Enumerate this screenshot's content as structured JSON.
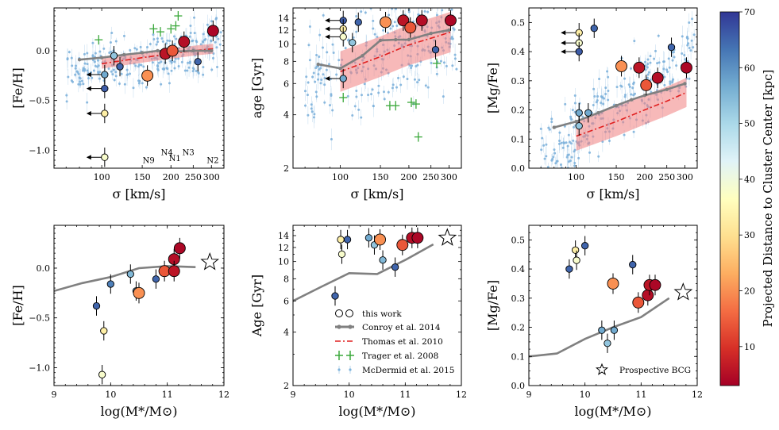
{
  "colors": {
    "conroy": "#808080",
    "thomas": "#e02020",
    "thomas_band": "#f08080",
    "trager": "#3aa83a",
    "mcdermid": "#7fb3dc",
    "errorbar": "#000000"
  },
  "colorbar": {
    "label": "Projected Distance to Cluster Center [kpc]",
    "range": [
      3,
      70
    ],
    "ticks": [
      10,
      20,
      30,
      40,
      50,
      60,
      70
    ],
    "colormap": [
      "#a50026",
      "#d73027",
      "#f46d43",
      "#fdae61",
      "#fee090",
      "#ffffbf",
      "#e0f3f8",
      "#abd9e9",
      "#74add1",
      "#4575b4",
      "#313695"
    ]
  },
  "legend": {
    "entries": [
      "this work",
      "Conroy et al. 2014",
      "Thomas et al. 2010",
      "Trager et al. 2008",
      "McDermid et al. 2015"
    ]
  },
  "bcg_legend": "Prospective BCG",
  "chart_data": [
    {
      "id": "feh_sigma",
      "type": "scatter",
      "xscale": "log",
      "yscale": "linear",
      "xlabel": "σ [km/s]",
      "ylabel": "[Fe/H]",
      "xlim": [
        62,
        340
      ],
      "ylim": [
        -1.18,
        0.43
      ],
      "xticks": [
        100,
        150,
        200,
        250,
        300
      ],
      "yticks": [
        -1.0,
        -0.5,
        0.0
      ],
      "ytick_labels": [
        "−1.0",
        "−0.5",
        "0.0"
      ],
      "points": [
        {
          "x": 103,
          "y": -0.24,
          "c": 57,
          "up": true
        },
        {
          "x": 103,
          "y": -0.38,
          "c": 66,
          "up": true
        },
        {
          "x": 103,
          "y": -0.63,
          "c": 33,
          "up": true
        },
        {
          "x": 103,
          "y": -1.07,
          "c": 38,
          "up": true
        },
        {
          "x": 113,
          "y": -0.05,
          "c": 53,
          "up": false
        },
        {
          "x": 120,
          "y": -0.16,
          "c": 65,
          "up": false
        },
        {
          "x": 158,
          "y": -0.25,
          "c": 20,
          "up": false
        },
        {
          "x": 189,
          "y": -0.03,
          "c": 6,
          "up": false
        },
        {
          "x": 203,
          "y": 0.0,
          "c": 14,
          "up": false
        },
        {
          "x": 228,
          "y": 0.09,
          "c": 5,
          "up": false
        },
        {
          "x": 262,
          "y": -0.11,
          "c": 65,
          "up": false
        },
        {
          "x": 305,
          "y": 0.2,
          "c": 4,
          "up": false
        }
      ],
      "conroy": {
        "x": [
          80,
          100,
          125,
          150,
          175,
          200,
          250,
          300
        ],
        "y": [
          -0.09,
          -0.07,
          -0.04,
          -0.02,
          0.0,
          -0.01,
          0.0,
          0.0
        ]
      },
      "thomas": {
        "x": [
          100,
          150,
          200,
          250,
          305
        ],
        "y": [
          -0.13,
          -0.07,
          -0.03,
          0.0,
          0.02
        ],
        "err": 0.05
      },
      "trager": [
        {
          "x": 97,
          "y": 0.11
        },
        {
          "x": 168,
          "y": 0.22
        },
        {
          "x": 180,
          "y": 0.19
        },
        {
          "x": 200,
          "y": 0.22
        },
        {
          "x": 210,
          "y": 0.25
        },
        {
          "x": 215,
          "y": 0.35
        }
      ],
      "annotations": [
        {
          "label": "N9",
          "x": 160,
          "y": -1.13
        },
        {
          "label": "N4",
          "x": 192,
          "y": -1.05
        },
        {
          "label": "N1",
          "x": 208,
          "y": -1.11
        },
        {
          "label": "N3",
          "x": 238,
          "y": -1.05
        },
        {
          "label": "N2",
          "x": 304,
          "y": -1.13
        }
      ]
    },
    {
      "id": "age_sigma",
      "type": "scatter",
      "xscale": "log",
      "yscale": "log",
      "xlabel": "σ [km/s]",
      "ylabel": "age [Gyr]",
      "xlim": [
        62,
        340
      ],
      "ylim": [
        2,
        16
      ],
      "xticks": [
        100,
        150,
        200,
        250,
        300
      ],
      "yticks": [
        2,
        4,
        6,
        8,
        10,
        12,
        14
      ],
      "points": [
        {
          "x": 103,
          "y": 13.6,
          "c": 66,
          "up": true
        },
        {
          "x": 103,
          "y": 12.2,
          "c": 33,
          "up": true
        },
        {
          "x": 103,
          "y": 11.0,
          "c": 38,
          "up": true
        },
        {
          "x": 103,
          "y": 6.4,
          "c": 57,
          "up": true
        },
        {
          "x": 113,
          "y": 10.2,
          "c": 53,
          "up": false
        },
        {
          "x": 120,
          "y": 13.3,
          "c": 65,
          "up": false
        },
        {
          "x": 158,
          "y": 13.3,
          "c": 20,
          "up": false
        },
        {
          "x": 189,
          "y": 13.6,
          "c": 6,
          "up": false
        },
        {
          "x": 203,
          "y": 12.4,
          "c": 14,
          "up": false
        },
        {
          "x": 228,
          "y": 13.6,
          "c": 5,
          "up": false
        },
        {
          "x": 262,
          "y": 9.3,
          "c": 65,
          "up": false
        },
        {
          "x": 305,
          "y": 13.6,
          "c": 4,
          "up": false
        }
      ],
      "conroy": {
        "x": [
          80,
          100,
          125,
          150,
          175,
          200,
          250,
          300
        ],
        "y": [
          7.7,
          7.3,
          8.6,
          10.5,
          10.6,
          10.6,
          11.5,
          12.0
        ]
      },
      "thomas": {
        "x": [
          100,
          150,
          200,
          250,
          305
        ],
        "y": [
          7.0,
          8.5,
          9.9,
          10.8,
          11.7
        ],
        "err_factor": 1.3
      },
      "trager": [
        {
          "x": 103,
          "y": 5.0
        },
        {
          "x": 165,
          "y": 4.5
        },
        {
          "x": 175,
          "y": 4.5
        },
        {
          "x": 205,
          "y": 4.7
        },
        {
          "x": 215,
          "y": 4.6
        },
        {
          "x": 220,
          "y": 3.0
        },
        {
          "x": 265,
          "y": 7.8
        }
      ]
    },
    {
      "id": "mgfe_sigma",
      "type": "scatter",
      "xscale": "log",
      "yscale": "linear",
      "xlabel": "σ [km/s]",
      "ylabel": "[Mg/Fe]",
      "xlim": [
        62,
        340
      ],
      "ylim": [
        0.0,
        0.55
      ],
      "xticks": [
        100,
        150,
        200,
        250,
        300
      ],
      "yticks": [
        0.0,
        0.1,
        0.2,
        0.3,
        0.4,
        0.5
      ],
      "points": [
        {
          "x": 103,
          "y": 0.465,
          "c": 33,
          "up": true
        },
        {
          "x": 103,
          "y": 0.43,
          "c": 38,
          "up": true
        },
        {
          "x": 103,
          "y": 0.4,
          "c": 66,
          "up": true
        },
        {
          "x": 103,
          "y": 0.19,
          "c": 57,
          "up": false
        },
        {
          "x": 103,
          "y": 0.145,
          "c": 53,
          "up": false
        },
        {
          "x": 113,
          "y": 0.19,
          "c": 57,
          "up": false
        },
        {
          "x": 120,
          "y": 0.48,
          "c": 65,
          "up": false
        },
        {
          "x": 158,
          "y": 0.35,
          "c": 20,
          "up": false
        },
        {
          "x": 189,
          "y": 0.345,
          "c": 6,
          "up": false
        },
        {
          "x": 203,
          "y": 0.285,
          "c": 14,
          "up": false
        },
        {
          "x": 228,
          "y": 0.31,
          "c": 5,
          "up": false
        },
        {
          "x": 262,
          "y": 0.415,
          "c": 65,
          "up": false
        },
        {
          "x": 305,
          "y": 0.345,
          "c": 4,
          "up": false
        }
      ],
      "conroy": {
        "x": [
          80,
          100,
          125,
          150,
          175,
          200,
          250,
          300
        ],
        "y": [
          0.14,
          0.16,
          0.19,
          0.215,
          0.235,
          0.25,
          0.27,
          0.29
        ]
      },
      "thomas": {
        "x": [
          100,
          150,
          200,
          250,
          305
        ],
        "y": [
          0.11,
          0.16,
          0.2,
          0.23,
          0.26
        ],
        "err": 0.05
      }
    },
    {
      "id": "feh_mass",
      "type": "scatter",
      "xscale": "linear",
      "yscale": "linear",
      "xlabel": "log(M*/M⊙)",
      "ylabel": "[Fe/H]",
      "xlim": [
        9,
        12
      ],
      "ylim": [
        -1.18,
        0.43
      ],
      "xticks": [
        9,
        10,
        11,
        12
      ],
      "yticks": [
        -1.0,
        -0.5,
        0.0
      ],
      "ytick_labels": [
        "−1.0",
        "−0.5",
        "0.0"
      ],
      "points": [
        {
          "x": 9.75,
          "y": -0.38,
          "c": 65,
          "small": true
        },
        {
          "x": 9.85,
          "y": -1.07,
          "c": 38,
          "small": true
        },
        {
          "x": 9.88,
          "y": -0.63,
          "c": 33,
          "small": true
        },
        {
          "x": 10.0,
          "y": -0.16,
          "c": 62,
          "small": true
        },
        {
          "x": 10.35,
          "y": -0.06,
          "c": 55,
          "small": true
        },
        {
          "x": 10.45,
          "y": -0.23,
          "c": 57,
          "small": true
        },
        {
          "x": 10.5,
          "y": -0.25,
          "c": 20,
          "small": false
        },
        {
          "x": 10.8,
          "y": -0.11,
          "c": 65,
          "small": true
        },
        {
          "x": 10.95,
          "y": -0.03,
          "c": 14,
          "small": false
        },
        {
          "x": 11.12,
          "y": 0.09,
          "c": 5,
          "small": false
        },
        {
          "x": 11.12,
          "y": -0.03,
          "c": 6,
          "small": false
        },
        {
          "x": 11.22,
          "y": 0.2,
          "c": 4,
          "small": false
        }
      ],
      "conroy": {
        "x": [
          9.0,
          9.5,
          10.0,
          10.5,
          11.0,
          11.5
        ],
        "y": [
          -0.23,
          -0.15,
          -0.09,
          0.0,
          0.02,
          0.01
        ]
      },
      "bcg": {
        "x": 11.75,
        "y": 0.06
      }
    },
    {
      "id": "age_mass",
      "type": "scatter",
      "xscale": "linear",
      "yscale": "log",
      "xlabel": "log(M*/M⊙)",
      "ylabel": "Age [Gyr]",
      "xlim": [
        9,
        12
      ],
      "ylim": [
        2,
        16
      ],
      "xticks": [
        9,
        10,
        11,
        12
      ],
      "yticks": [
        2,
        4,
        6,
        8,
        10,
        12,
        14
      ],
      "points": [
        {
          "x": 9.75,
          "y": 6.4,
          "c": 65,
          "small": true
        },
        {
          "x": 9.85,
          "y": 13.3,
          "c": 33,
          "small": true
        },
        {
          "x": 9.87,
          "y": 11.0,
          "c": 38,
          "small": true
        },
        {
          "x": 9.97,
          "y": 13.3,
          "c": 65,
          "small": true
        },
        {
          "x": 10.35,
          "y": 13.6,
          "c": 57,
          "small": true
        },
        {
          "x": 10.45,
          "y": 12.4,
          "c": 53,
          "small": true
        },
        {
          "x": 10.55,
          "y": 13.3,
          "c": 20,
          "small": false
        },
        {
          "x": 10.6,
          "y": 10.2,
          "c": 55,
          "small": true
        },
        {
          "x": 10.82,
          "y": 9.3,
          "c": 65,
          "small": true
        },
        {
          "x": 10.95,
          "y": 12.4,
          "c": 14,
          "small": false
        },
        {
          "x": 11.12,
          "y": 13.6,
          "c": 5,
          "small": false
        },
        {
          "x": 11.22,
          "y": 13.6,
          "c": 4,
          "small": false
        }
      ],
      "conroy": {
        "x": [
          9.0,
          9.5,
          10.0,
          10.5,
          11.0,
          11.5
        ],
        "y": [
          6.0,
          7.2,
          8.6,
          8.5,
          10.2,
          12.5
        ]
      },
      "bcg": {
        "x": 11.75,
        "y": 13.6
      }
    },
    {
      "id": "mgfe_mass",
      "type": "scatter",
      "xscale": "linear",
      "yscale": "linear",
      "xlabel": "log(M*/M⊙)",
      "ylabel": "[Mg/Fe]",
      "xlim": [
        9,
        12
      ],
      "ylim": [
        0.0,
        0.55
      ],
      "xticks": [
        9,
        10,
        11,
        12
      ],
      "yticks": [
        0.0,
        0.1,
        0.2,
        0.3,
        0.4,
        0.5
      ],
      "points": [
        {
          "x": 9.72,
          "y": 0.4,
          "c": 65,
          "small": true
        },
        {
          "x": 9.83,
          "y": 0.465,
          "c": 33,
          "small": true
        },
        {
          "x": 9.85,
          "y": 0.43,
          "c": 38,
          "small": true
        },
        {
          "x": 10.0,
          "y": 0.48,
          "c": 65,
          "small": true
        },
        {
          "x": 10.3,
          "y": 0.19,
          "c": 57,
          "small": true
        },
        {
          "x": 10.4,
          "y": 0.145,
          "c": 53,
          "small": true
        },
        {
          "x": 10.5,
          "y": 0.35,
          "c": 20,
          "small": false
        },
        {
          "x": 10.52,
          "y": 0.19,
          "c": 57,
          "small": true
        },
        {
          "x": 10.85,
          "y": 0.415,
          "c": 65,
          "small": true
        },
        {
          "x": 10.95,
          "y": 0.285,
          "c": 14,
          "small": false
        },
        {
          "x": 11.12,
          "y": 0.31,
          "c": 5,
          "small": false
        },
        {
          "x": 11.15,
          "y": 0.345,
          "c": 6,
          "small": false
        },
        {
          "x": 11.25,
          "y": 0.345,
          "c": 4,
          "small": false
        }
      ],
      "conroy": {
        "x": [
          9.0,
          9.5,
          10.0,
          10.5,
          11.0,
          11.5
        ],
        "y": [
          0.1,
          0.11,
          0.16,
          0.2,
          0.235,
          0.3
        ]
      },
      "bcg": {
        "x": 11.75,
        "y": 0.32
      }
    }
  ]
}
